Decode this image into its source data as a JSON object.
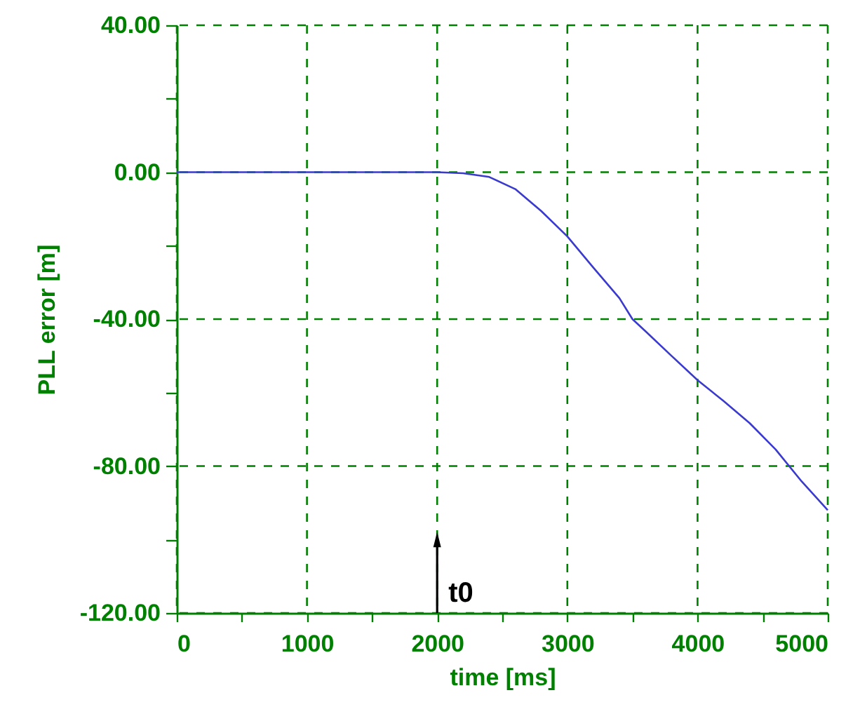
{
  "chart_data": {
    "type": "line",
    "xlabel": "time [ms]",
    "ylabel": "PLL  error [m]",
    "xlim": [
      0,
      5000
    ],
    "ylim": [
      -120,
      40
    ],
    "xticks": [
      0,
      {
        "value": 500,
        "label": null
      },
      1000,
      {
        "value": 1500,
        "label": null
      },
      2000,
      {
        "value": 2500,
        "label": null
      },
      3000,
      {
        "value": 3500,
        "label": null
      },
      4000,
      {
        "value": 4500,
        "label": null
      },
      5000
    ],
    "yticks": [
      {
        "value": -120,
        "label": "-120.00"
      },
      {
        "value": -100,
        "label": null
      },
      {
        "value": -80,
        "label": "-80.00"
      },
      {
        "value": -60,
        "label": null
      },
      {
        "value": -40,
        "label": "-40.00"
      },
      {
        "value": -20,
        "label": null
      },
      {
        "value": 0,
        "label": "0.00"
      },
      {
        "value": 20,
        "label": null
      },
      {
        "value": 40,
        "label": "40.00"
      }
    ],
    "grid": true,
    "line_style": "solid",
    "marker": "none",
    "x": [
      0,
      500,
      1000,
      1500,
      2000,
      2200,
      2400,
      2600,
      2800,
      3000,
      3200,
      3400,
      3500,
      3600,
      3800,
      4000,
      4200,
      4400,
      4600,
      4800,
      5000
    ],
    "series": [
      {
        "color": "#3a3acc",
        "values": [
          0,
          0,
          0,
          0,
          0,
          -0.3,
          -1.3,
          -4.6,
          -10.6,
          -17.5,
          -26,
          -34.3,
          -40,
          -43.3,
          -50,
          -56.6,
          -62.3,
          -68.3,
          -75.5,
          -84.2,
          -92
        ]
      }
    ],
    "annotations": [
      {
        "text": "t0",
        "x": 2000,
        "y": -100
      }
    ]
  }
}
